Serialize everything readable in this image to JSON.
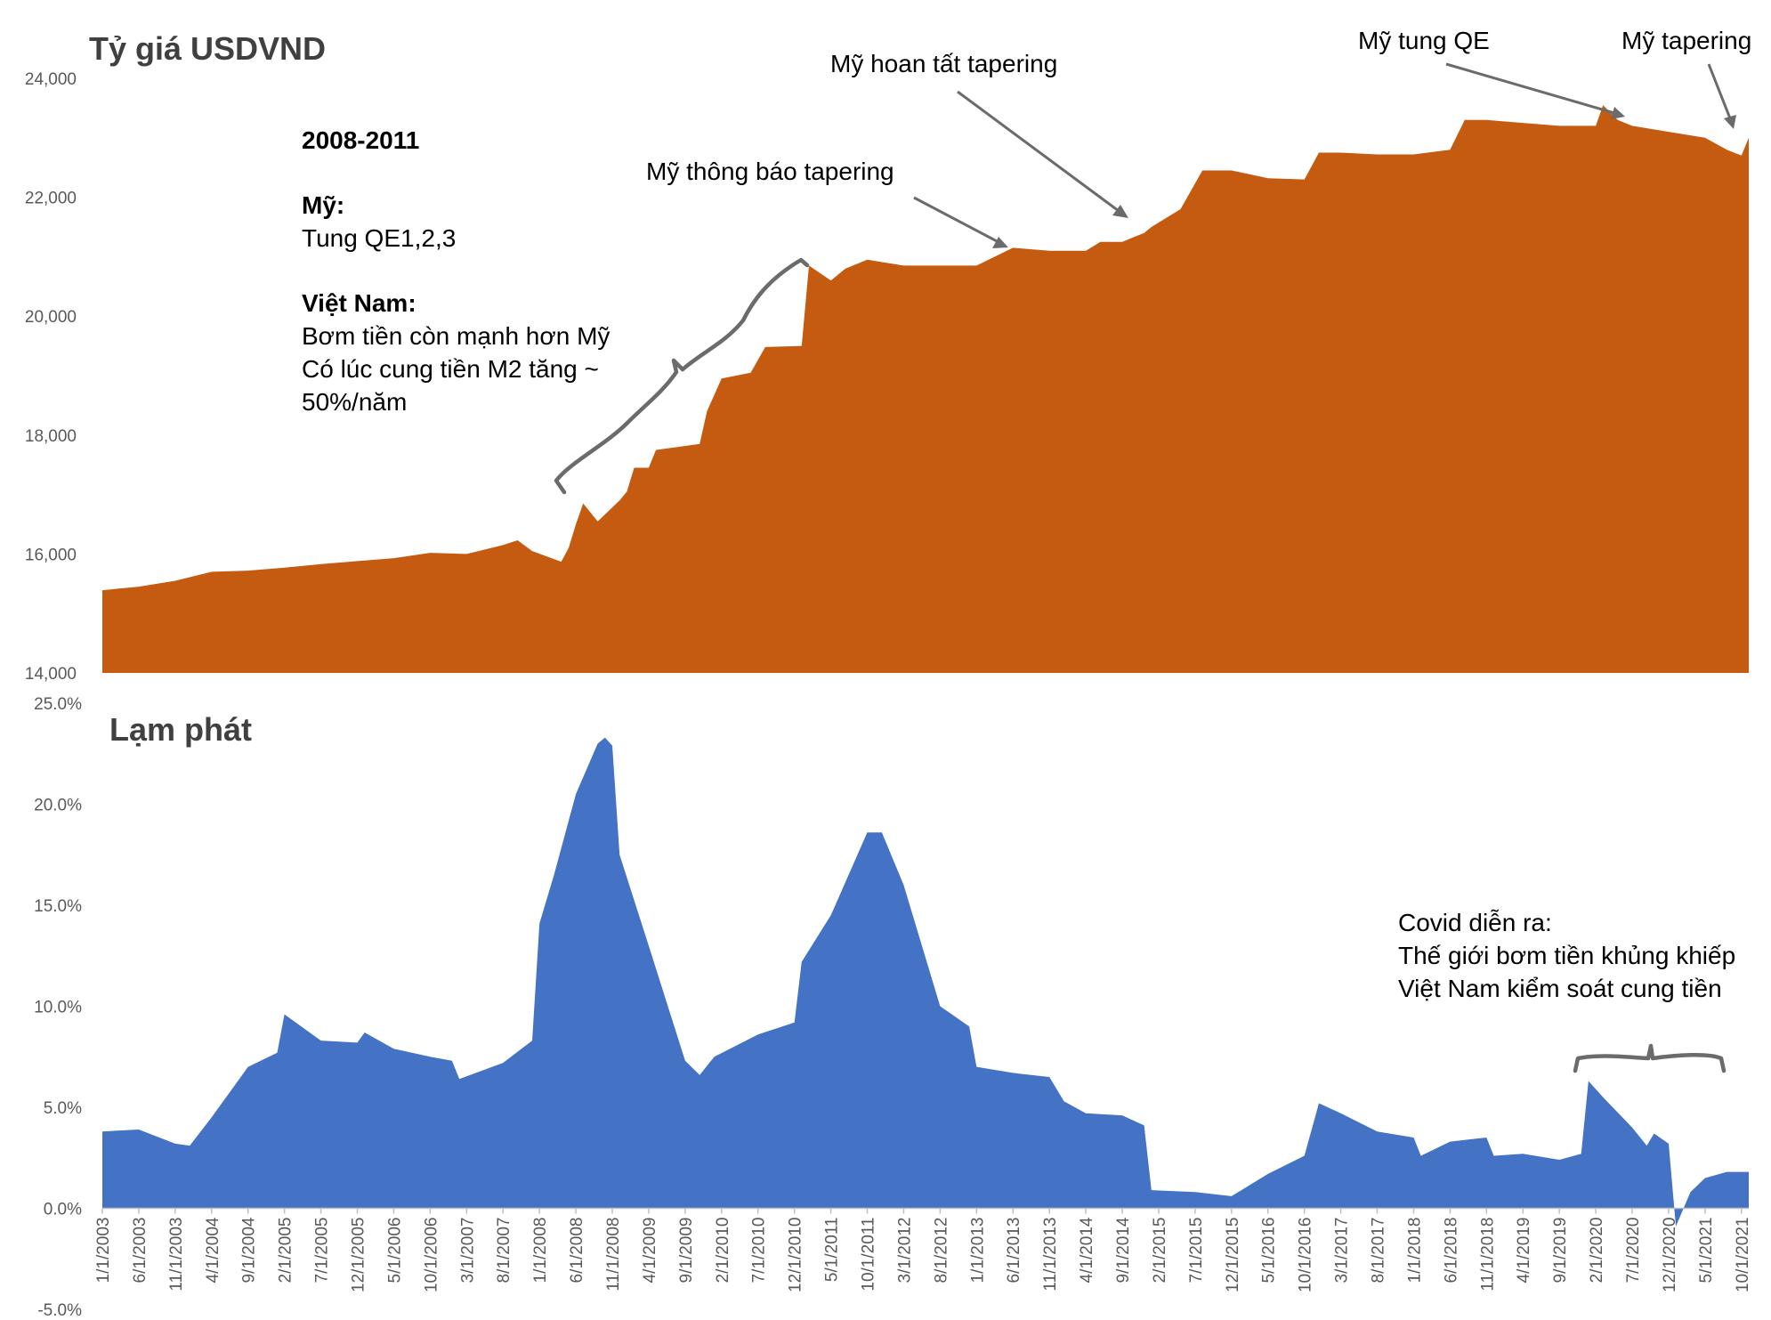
{
  "chart_data": [
    {
      "type": "area",
      "title": "Tỷ giá USDVND",
      "color": "#C55A11",
      "ylim": [
        14000,
        24000
      ],
      "yticks": [
        "14,000",
        "16,000",
        "18,000",
        "20,000",
        "22,000",
        "24,000"
      ],
      "ytick_values": [
        14000,
        16000,
        18000,
        20000,
        22000,
        24000
      ],
      "x_range": [
        "2003-01",
        "2021-11"
      ],
      "points": [
        {
          "x": "2003-01",
          "y": 15390
        },
        {
          "x": "2003-06",
          "y": 15450
        },
        {
          "x": "2003-11",
          "y": 15550
        },
        {
          "x": "2004-04",
          "y": 15700
        },
        {
          "x": "2004-09",
          "y": 15720
        },
        {
          "x": "2005-02",
          "y": 15770
        },
        {
          "x": "2005-07",
          "y": 15830
        },
        {
          "x": "2005-12",
          "y": 15880
        },
        {
          "x": "2006-05",
          "y": 15930
        },
        {
          "x": "2006-10",
          "y": 16020
        },
        {
          "x": "2007-03",
          "y": 16000
        },
        {
          "x": "2007-08",
          "y": 16150
        },
        {
          "x": "2007-10",
          "y": 16230
        },
        {
          "x": "2007-12",
          "y": 16050
        },
        {
          "x": "2008-04",
          "y": 15870
        },
        {
          "x": "2008-05",
          "y": 16100
        },
        {
          "x": "2008-06",
          "y": 16500
        },
        {
          "x": "2008-07",
          "y": 16850
        },
        {
          "x": "2008-09",
          "y": 16550
        },
        {
          "x": "2008-12",
          "y": 16900
        },
        {
          "x": "2009-01",
          "y": 17050
        },
        {
          "x": "2009-02",
          "y": 17450
        },
        {
          "x": "2009-04",
          "y": 17450
        },
        {
          "x": "2009-05",
          "y": 17750
        },
        {
          "x": "2009-11",
          "y": 17850
        },
        {
          "x": "2009-12",
          "y": 18400
        },
        {
          "x": "2010-02",
          "y": 18950
        },
        {
          "x": "2010-06",
          "y": 19050
        },
        {
          "x": "2010-08",
          "y": 19480
        },
        {
          "x": "2011-01",
          "y": 19500
        },
        {
          "x": "2011-02",
          "y": 20850
        },
        {
          "x": "2011-05",
          "y": 20600
        },
        {
          "x": "2011-07",
          "y": 20800
        },
        {
          "x": "2011-10",
          "y": 20950
        },
        {
          "x": "2012-03",
          "y": 20850
        },
        {
          "x": "2012-08",
          "y": 20850
        },
        {
          "x": "2013-01",
          "y": 20850
        },
        {
          "x": "2013-06",
          "y": 21150
        },
        {
          "x": "2013-11",
          "y": 21100
        },
        {
          "x": "2014-04",
          "y": 21100
        },
        {
          "x": "2014-06",
          "y": 21250
        },
        {
          "x": "2014-09",
          "y": 21250
        },
        {
          "x": "2014-12",
          "y": 21400
        },
        {
          "x": "2015-01",
          "y": 21500
        },
        {
          "x": "2015-05",
          "y": 21800
        },
        {
          "x": "2015-08",
          "y": 22450
        },
        {
          "x": "2015-12",
          "y": 22450
        },
        {
          "x": "2016-05",
          "y": 22320
        },
        {
          "x": "2016-10",
          "y": 22300
        },
        {
          "x": "2016-12",
          "y": 22750
        },
        {
          "x": "2017-03",
          "y": 22750
        },
        {
          "x": "2017-08",
          "y": 22720
        },
        {
          "x": "2018-01",
          "y": 22720
        },
        {
          "x": "2018-06",
          "y": 22800
        },
        {
          "x": "2018-08",
          "y": 23300
        },
        {
          "x": "2018-11",
          "y": 23300
        },
        {
          "x": "2019-04",
          "y": 23250
        },
        {
          "x": "2019-09",
          "y": 23200
        },
        {
          "x": "2020-02",
          "y": 23200
        },
        {
          "x": "2020-03",
          "y": 23550
        },
        {
          "x": "2020-05",
          "y": 23300
        },
        {
          "x": "2020-07",
          "y": 23200
        },
        {
          "x": "2020-12",
          "y": 23100
        },
        {
          "x": "2021-05",
          "y": 23000
        },
        {
          "x": "2021-08",
          "y": 22800
        },
        {
          "x": "2021-10",
          "y": 22700
        },
        {
          "x": "2021-11",
          "y": 23000
        }
      ]
    },
    {
      "type": "area",
      "title": "Lạm phát",
      "color": "#4472C4",
      "ylim": [
        -5,
        25
      ],
      "yticks": [
        "-5.0%",
        "0.0%",
        "5.0%",
        "10.0%",
        "15.0%",
        "20.0%",
        "25.0%"
      ],
      "ytick_values": [
        -5,
        0,
        5,
        10,
        15,
        20,
        25
      ],
      "x_range": [
        "2003-01",
        "2021-11"
      ],
      "xticks": [
        "1/1/2003",
        "6/1/2003",
        "11/1/2003",
        "4/1/2004",
        "9/1/2004",
        "2/1/2005",
        "7/1/2005",
        "12/1/2005",
        "5/1/2006",
        "10/1/2006",
        "3/1/2007",
        "8/1/2007",
        "1/1/2008",
        "6/1/2008",
        "11/1/2008",
        "4/1/2009",
        "9/1/2009",
        "2/1/2010",
        "7/1/2010",
        "12/1/2010",
        "5/1/2011",
        "10/1/2011",
        "3/1/2012",
        "8/1/2012",
        "1/1/2013",
        "6/1/2013",
        "11/1/2013",
        "4/1/2014",
        "9/1/2014",
        "2/1/2015",
        "7/1/2015",
        "12/1/2015",
        "5/1/2016",
        "10/1/2016",
        "3/1/2017",
        "8/1/2017",
        "1/1/2018",
        "6/1/2018",
        "11/1/2018",
        "4/1/2019",
        "9/1/2019",
        "2/1/2020",
        "7/1/2020",
        "12/1/2020",
        "5/1/2021",
        "10/1/2021"
      ],
      "points": [
        {
          "x": "2003-01",
          "y": 3.8
        },
        {
          "x": "2003-06",
          "y": 3.9
        },
        {
          "x": "2003-11",
          "y": 3.2
        },
        {
          "x": "2004-01",
          "y": 3.1
        },
        {
          "x": "2004-04",
          "y": 4.5
        },
        {
          "x": "2004-09",
          "y": 7.0
        },
        {
          "x": "2005-01",
          "y": 7.7
        },
        {
          "x": "2005-02",
          "y": 9.6
        },
        {
          "x": "2005-07",
          "y": 8.3
        },
        {
          "x": "2005-12",
          "y": 8.2
        },
        {
          "x": "2006-01",
          "y": 8.7
        },
        {
          "x": "2006-05",
          "y": 7.9
        },
        {
          "x": "2006-10",
          "y": 7.5
        },
        {
          "x": "2007-01",
          "y": 7.3
        },
        {
          "x": "2007-02",
          "y": 6.4
        },
        {
          "x": "2007-08",
          "y": 7.2
        },
        {
          "x": "2007-12",
          "y": 8.3
        },
        {
          "x": "2008-01",
          "y": 14.1
        },
        {
          "x": "2008-03",
          "y": 16.5
        },
        {
          "x": "2008-06",
          "y": 20.5
        },
        {
          "x": "2008-09",
          "y": 23.0
        },
        {
          "x": "2008-10",
          "y": 23.3
        },
        {
          "x": "2008-11",
          "y": 22.9
        },
        {
          "x": "2008-12",
          "y": 17.5
        },
        {
          "x": "2009-04",
          "y": 13.0
        },
        {
          "x": "2009-09",
          "y": 7.3
        },
        {
          "x": "2009-11",
          "y": 6.6
        },
        {
          "x": "2010-01",
          "y": 7.5
        },
        {
          "x": "2010-07",
          "y": 8.6
        },
        {
          "x": "2010-12",
          "y": 9.2
        },
        {
          "x": "2011-01",
          "y": 12.2
        },
        {
          "x": "2011-05",
          "y": 14.5
        },
        {
          "x": "2011-10",
          "y": 18.6
        },
        {
          "x": "2011-12",
          "y": 18.6
        },
        {
          "x": "2012-03",
          "y": 16.0
        },
        {
          "x": "2012-08",
          "y": 10.0
        },
        {
          "x": "2012-12",
          "y": 9.0
        },
        {
          "x": "2013-01",
          "y": 7.0
        },
        {
          "x": "2013-06",
          "y": 6.7
        },
        {
          "x": "2013-11",
          "y": 6.5
        },
        {
          "x": "2014-01",
          "y": 5.3
        },
        {
          "x": "2014-04",
          "y": 4.7
        },
        {
          "x": "2014-09",
          "y": 4.6
        },
        {
          "x": "2014-12",
          "y": 4.1
        },
        {
          "x": "2015-01",
          "y": 0.9
        },
        {
          "x": "2015-07",
          "y": 0.8
        },
        {
          "x": "2015-12",
          "y": 0.6
        },
        {
          "x": "2016-05",
          "y": 1.7
        },
        {
          "x": "2016-10",
          "y": 2.6
        },
        {
          "x": "2016-12",
          "y": 5.2
        },
        {
          "x": "2017-03",
          "y": 4.7
        },
        {
          "x": "2017-08",
          "y": 3.8
        },
        {
          "x": "2018-01",
          "y": 3.5
        },
        {
          "x": "2018-02",
          "y": 2.6
        },
        {
          "x": "2018-06",
          "y": 3.3
        },
        {
          "x": "2018-11",
          "y": 3.5
        },
        {
          "x": "2018-12",
          "y": 2.6
        },
        {
          "x": "2019-04",
          "y": 2.7
        },
        {
          "x": "2019-09",
          "y": 2.4
        },
        {
          "x": "2019-12",
          "y": 2.7
        },
        {
          "x": "2020-01",
          "y": 6.3
        },
        {
          "x": "2020-03",
          "y": 5.5
        },
        {
          "x": "2020-07",
          "y": 4.0
        },
        {
          "x": "2020-09",
          "y": 3.1
        },
        {
          "x": "2020-10",
          "y": 3.7
        },
        {
          "x": "2020-12",
          "y": 3.2
        },
        {
          "x": "2021-01",
          "y": -0.9
        },
        {
          "x": "2021-03",
          "y": 0.8
        },
        {
          "x": "2021-05",
          "y": 1.5
        },
        {
          "x": "2021-08",
          "y": 1.8
        },
        {
          "x": "2021-11",
          "y": 1.8
        }
      ]
    }
  ],
  "annotations": {
    "box_title": "2008-2011",
    "my_label": "Mỹ:",
    "my_text": "Tung QE1,2,3",
    "vn_label": "Việt Nam:",
    "vn_line1": "Bơm tiền còn mạnh hơn Mỹ",
    "vn_line2": "Có lúc cung tiền M2 tăng ~",
    "vn_line3": "50%/năm",
    "announce": "Mỹ thông báo tapering",
    "complete": "Mỹ hoan tất tapering",
    "qe": "Mỹ tung QE",
    "tapering": "Mỹ tapering",
    "covid_line1": "Covid diễn ra:",
    "covid_line2": "Thế giới bơm tiền khủng khiếp",
    "covid_line3": "Việt Nam kiểm soát cung tiền"
  }
}
